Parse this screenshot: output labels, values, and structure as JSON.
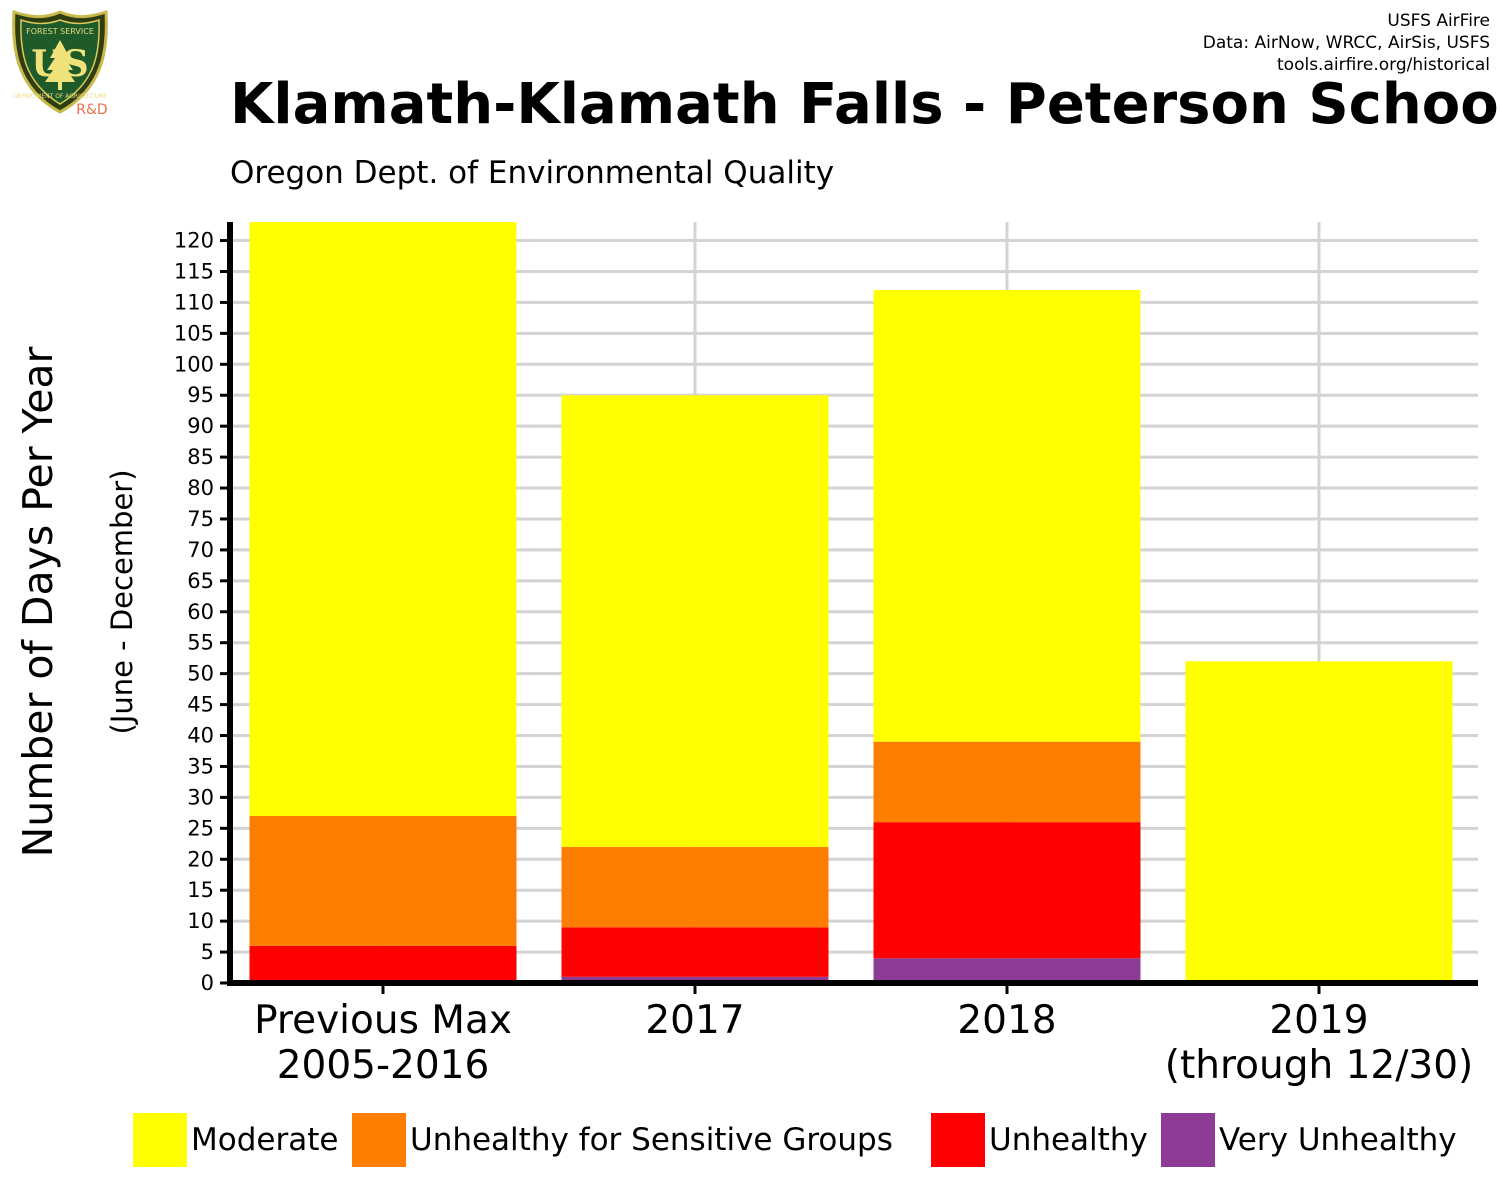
{
  "header": {
    "credits": [
      "USFS AirFire",
      "Data: AirNow, WRCC, AirSis, USFS",
      "tools.airfire.org/historical"
    ],
    "logo": {
      "icon": "forest-service-shield-icon",
      "top_text": "FOREST SERVICE",
      "letters": "US",
      "bottom_text": "DEPARTMENT OF AGRICULTURE",
      "tag": "R&D"
    }
  },
  "chart_data": {
    "type": "bar",
    "stacked": true,
    "title": "Klamath-Klamath Falls - Peterson School",
    "subtitle": "Oregon Dept. of Environmental Quality",
    "ylabel": "Number of Days Per Year",
    "ylabel_sub": "(June - December)",
    "xlabel": "",
    "ylim": [
      0,
      123
    ],
    "yticks": [
      0,
      5,
      10,
      15,
      20,
      25,
      30,
      35,
      40,
      45,
      50,
      55,
      60,
      65,
      70,
      75,
      80,
      85,
      90,
      95,
      100,
      105,
      110,
      115,
      120
    ],
    "grid": true,
    "legend_position": "bottom",
    "categories": [
      [
        "Previous Max",
        "2005-2016"
      ],
      [
        "2017"
      ],
      [
        "2018"
      ],
      [
        "2019",
        "(through 12/30)"
      ]
    ],
    "series": [
      {
        "name": "Very Unhealthy",
        "color": "#8E3B97",
        "values": [
          0,
          1,
          4,
          0
        ]
      },
      {
        "name": "Unhealthy",
        "color": "#FF0000",
        "values": [
          6,
          8,
          22,
          0
        ]
      },
      {
        "name": "Unhealthy for Sensitive Groups",
        "color": "#FF7E00",
        "values": [
          21,
          13,
          13,
          0
        ]
      },
      {
        "name": "Moderate",
        "color": "#FFFF00",
        "values": [
          96,
          73,
          73,
          52
        ]
      }
    ],
    "legend_order": [
      "Moderate",
      "Unhealthy for Sensitive Groups",
      "Unhealthy",
      "Very Unhealthy"
    ]
  }
}
